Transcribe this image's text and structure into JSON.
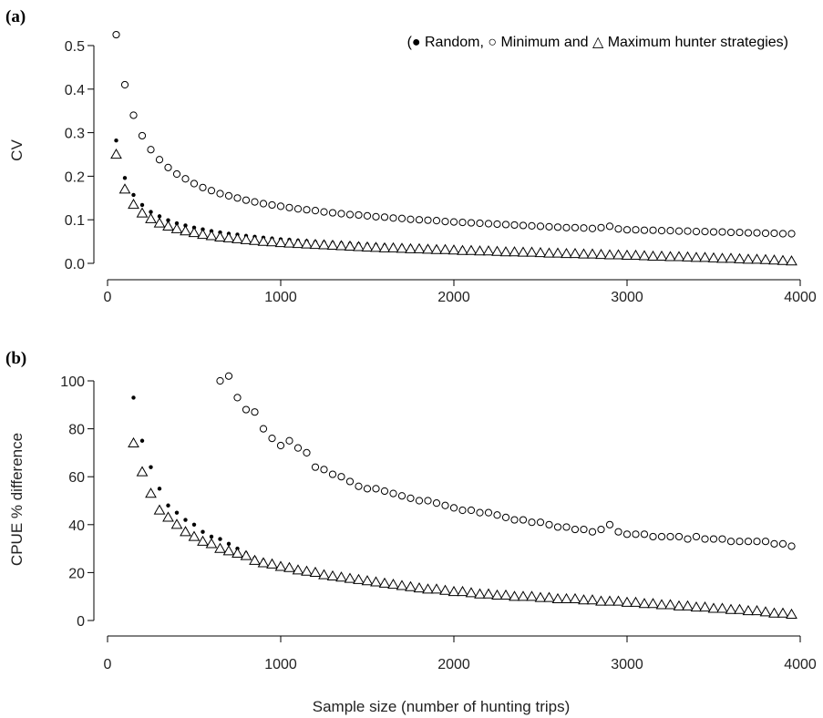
{
  "legend_text": "(● Random, ○ Minimum and △ Maximum hunter strategies)",
  "xlabel": "Sample size (number of hunting trips)",
  "chart_data": [
    {
      "type": "scatter",
      "panel_label": "(a)",
      "ylabel": "CV",
      "xlim": [
        0,
        4000
      ],
      "ylim": [
        0,
        0.55
      ],
      "xticks": [
        0,
        1000,
        2000,
        3000,
        4000
      ],
      "yticks": [
        "0.0",
        "0.1",
        "0.2",
        "0.3",
        "0.4",
        "0.5"
      ],
      "grid": false,
      "legend_position": "top-right",
      "x": [
        50,
        100,
        150,
        200,
        250,
        300,
        350,
        400,
        450,
        500,
        550,
        600,
        650,
        700,
        750,
        800,
        850,
        900,
        950,
        1000,
        1050,
        1100,
        1150,
        1200,
        1250,
        1300,
        1350,
        1400,
        1450,
        1500,
        1550,
        1600,
        1650,
        1700,
        1750,
        1800,
        1850,
        1900,
        1950,
        2000,
        2050,
        2100,
        2150,
        2200,
        2250,
        2300,
        2350,
        2400,
        2450,
        2500,
        2550,
        2600,
        2650,
        2700,
        2750,
        2800,
        2850,
        2900,
        2950,
        3000,
        3050,
        3100,
        3150,
        3200,
        3250,
        3300,
        3350,
        3400,
        3450,
        3500,
        3550,
        3600,
        3650,
        3700,
        3750,
        3800,
        3850,
        3900,
        3950
      ],
      "series": [
        {
          "name": "Random",
          "marker": "filled-circle",
          "values": [
            0.282,
            0.196,
            0.157,
            0.134,
            0.118,
            0.108,
            0.099,
            0.092,
            0.087,
            0.082,
            0.078,
            0.074,
            0.071,
            0.068,
            0.066,
            0.063,
            0.061,
            0.059,
            0.057,
            0.055,
            0.054,
            0.052,
            0.051,
            0.049,
            0.048,
            0.047,
            0.046,
            0.045,
            0.044,
            0.043,
            0.042,
            0.041,
            0.04,
            0.039,
            0.038,
            0.037,
            0.037,
            0.036,
            0.035,
            0.034,
            0.034,
            0.033,
            0.032,
            0.031,
            0.031,
            0.03,
            0.029,
            0.029,
            0.028,
            0.027,
            0.027,
            0.026,
            0.025,
            0.025,
            0.024,
            0.023,
            0.023,
            0.022,
            0.021,
            0.021,
            0.02,
            0.019,
            0.019,
            0.018,
            0.017,
            0.017,
            0.016,
            0.015,
            0.015,
            0.014,
            0.013,
            0.012,
            0.012,
            0.011,
            0.01,
            0.009,
            0.009,
            0.008,
            0.007
          ]
        },
        {
          "name": "Minimum",
          "marker": "open-circle",
          "values": [
            0.525,
            0.41,
            0.34,
            0.293,
            0.261,
            0.238,
            0.22,
            0.205,
            0.194,
            0.183,
            0.174,
            0.167,
            0.16,
            0.155,
            0.15,
            0.145,
            0.141,
            0.137,
            0.134,
            0.131,
            0.128,
            0.125,
            0.123,
            0.121,
            0.118,
            0.116,
            0.114,
            0.112,
            0.111,
            0.109,
            0.107,
            0.106,
            0.104,
            0.103,
            0.101,
            0.1,
            0.099,
            0.098,
            0.096,
            0.095,
            0.094,
            0.093,
            0.092,
            0.091,
            0.09,
            0.089,
            0.088,
            0.087,
            0.086,
            0.085,
            0.084,
            0.083,
            0.082,
            0.082,
            0.081,
            0.08,
            0.082,
            0.085,
            0.079,
            0.077,
            0.077,
            0.076,
            0.076,
            0.075,
            0.075,
            0.074,
            0.074,
            0.073,
            0.073,
            0.072,
            0.072,
            0.071,
            0.071,
            0.07,
            0.07,
            0.069,
            0.069,
            0.068,
            0.068
          ]
        },
        {
          "name": "Maximum",
          "marker": "open-triangle",
          "values": [
            0.25,
            0.17,
            0.135,
            0.115,
            0.102,
            0.092,
            0.085,
            0.079,
            0.074,
            0.07,
            0.066,
            0.063,
            0.06,
            0.058,
            0.056,
            0.054,
            0.052,
            0.05,
            0.049,
            0.047,
            0.046,
            0.045,
            0.044,
            0.043,
            0.042,
            0.041,
            0.04,
            0.039,
            0.038,
            0.037,
            0.036,
            0.035,
            0.035,
            0.034,
            0.033,
            0.033,
            0.032,
            0.031,
            0.031,
            0.03,
            0.029,
            0.029,
            0.028,
            0.028,
            0.027,
            0.026,
            0.026,
            0.025,
            0.025,
            0.024,
            0.023,
            0.023,
            0.022,
            0.022,
            0.021,
            0.021,
            0.02,
            0.019,
            0.019,
            0.018,
            0.018,
            0.017,
            0.016,
            0.016,
            0.015,
            0.015,
            0.014,
            0.013,
            0.013,
            0.012,
            0.011,
            0.011,
            0.01,
            0.009,
            0.009,
            0.008,
            0.007,
            0.006,
            0.005
          ]
        }
      ]
    },
    {
      "type": "scatter",
      "panel_label": "(b)",
      "ylabel": "CPUE % difference",
      "xlim": [
        0,
        4000
      ],
      "ylim": [
        0,
        100
      ],
      "xticks": [
        0,
        1000,
        2000,
        3000,
        4000
      ],
      "yticks": [
        "0",
        "20",
        "40",
        "60",
        "80",
        "100"
      ],
      "grid": false,
      "series": [
        {
          "name": "Random",
          "marker": "filled-circle",
          "x": [
            150,
            200,
            250,
            300,
            350,
            400,
            450,
            500,
            550,
            600,
            650,
            700,
            750,
            800,
            850,
            900,
            950,
            1000,
            1050,
            1100,
            1150,
            1200,
            1250,
            1300,
            1350,
            1400,
            1450,
            1500,
            1550,
            1600,
            1650,
            1700,
            1750,
            1800,
            1850,
            1900,
            1950,
            2000,
            2050,
            2100,
            2150,
            2200,
            2250,
            2300,
            2350,
            2400,
            2450,
            2500,
            2550,
            2600,
            2650,
            2700,
            2750,
            2800,
            2850,
            2900,
            2950,
            3000,
            3050,
            3100,
            3150,
            3200,
            3250,
            3300,
            3350,
            3400,
            3450,
            3500,
            3550,
            3600,
            3650,
            3700,
            3750,
            3800,
            3850,
            3900,
            3950
          ],
          "values": [
            93,
            75,
            64,
            55,
            48,
            45,
            42,
            40,
            37,
            35,
            34,
            32,
            30,
            28,
            26,
            25,
            24,
            23,
            22,
            21.5,
            21,
            20,
            19.5,
            19,
            18.5,
            18,
            17,
            16.5,
            16,
            15.5,
            15,
            14.5,
            14,
            13.5,
            13,
            13,
            12.5,
            12,
            12,
            11.5,
            11,
            11,
            10.5,
            10.5,
            10,
            10,
            10,
            10,
            9.5,
            9.5,
            9,
            9,
            9,
            8.5,
            8.5,
            8,
            8,
            7.5,
            7.5,
            7,
            7,
            6.5,
            6.5,
            6,
            6,
            5.5,
            5,
            5,
            4.5,
            4,
            4,
            3.5,
            3.5,
            3,
            3,
            2.5,
            2
          ]
        },
        {
          "name": "Minimum",
          "marker": "open-circle",
          "x": [
            650,
            700,
            750,
            800,
            850,
            900,
            950,
            1000,
            1050,
            1100,
            1150,
            1200,
            1250,
            1300,
            1350,
            1400,
            1450,
            1500,
            1550,
            1600,
            1650,
            1700,
            1750,
            1800,
            1850,
            1900,
            1950,
            2000,
            2050,
            2100,
            2150,
            2200,
            2250,
            2300,
            2350,
            2400,
            2450,
            2500,
            2550,
            2600,
            2650,
            2700,
            2750,
            2800,
            2850,
            2900,
            2950,
            3000,
            3050,
            3100,
            3150,
            3200,
            3250,
            3300,
            3350,
            3400,
            3450,
            3500,
            3550,
            3600,
            3650,
            3700,
            3750,
            3800,
            3850,
            3900,
            3950
          ],
          "values": [
            100,
            102,
            93,
            88,
            87,
            80,
            76,
            73,
            75,
            72,
            70,
            64,
            63,
            61,
            60,
            58,
            56,
            55,
            55,
            54,
            53,
            52,
            51,
            50,
            50,
            49,
            48,
            47,
            46,
            46,
            45,
            45,
            44,
            43,
            42,
            42,
            41,
            41,
            40,
            39,
            39,
            38,
            38,
            37,
            38,
            40,
            37,
            36,
            36,
            36,
            35,
            35,
            35,
            35,
            34,
            35,
            34,
            34,
            34,
            33,
            33,
            33,
            33,
            33,
            32,
            32,
            31
          ]
        },
        {
          "name": "Maximum",
          "marker": "open-triangle",
          "x": [
            150,
            200,
            250,
            300,
            350,
            400,
            450,
            500,
            550,
            600,
            650,
            700,
            750,
            800,
            850,
            900,
            950,
            1000,
            1050,
            1100,
            1150,
            1200,
            1250,
            1300,
            1350,
            1400,
            1450,
            1500,
            1550,
            1600,
            1650,
            1700,
            1750,
            1800,
            1850,
            1900,
            1950,
            2000,
            2050,
            2100,
            2150,
            2200,
            2250,
            2300,
            2350,
            2400,
            2450,
            2500,
            2550,
            2600,
            2650,
            2700,
            2750,
            2800,
            2850,
            2900,
            2950,
            3000,
            3050,
            3100,
            3150,
            3200,
            3250,
            3300,
            3350,
            3400,
            3450,
            3500,
            3550,
            3600,
            3650,
            3700,
            3750,
            3800,
            3850,
            3900,
            3950
          ],
          "values": [
            74,
            62,
            53,
            46,
            43,
            40,
            37,
            35,
            33,
            32,
            30,
            29,
            28,
            27,
            25,
            24,
            23.5,
            22.5,
            22,
            21,
            20.5,
            20,
            19,
            18.5,
            18,
            17.5,
            17,
            16.5,
            16,
            15.5,
            15,
            14.5,
            14,
            13.5,
            13,
            13,
            12.5,
            12,
            12,
            11.5,
            11,
            11,
            10.5,
            10.5,
            10,
            10,
            10,
            9.5,
            9.5,
            9,
            9,
            9,
            8.5,
            8.5,
            8,
            8,
            8,
            7.5,
            7.5,
            7,
            7,
            6.5,
            6.5,
            6,
            6,
            5.5,
            5.5,
            5,
            5,
            4.5,
            4.5,
            4,
            4,
            3.5,
            3,
            3,
            2.5
          ]
        }
      ]
    }
  ]
}
